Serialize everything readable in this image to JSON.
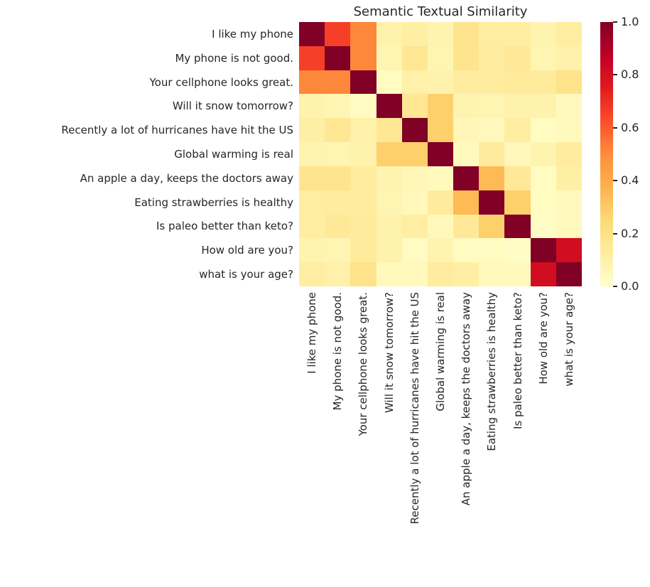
{
  "title": "Semantic Textual Similarity",
  "chart_data": {
    "type": "heatmap",
    "title": "Semantic Textual Similarity",
    "labels": [
      "I like my phone",
      "My phone is not good.",
      "Your cellphone looks great.",
      "Will it snow tomorrow?",
      "Recently a lot of hurricanes have hit the US",
      "Global warming is real",
      "An apple a day, keeps the doctors away",
      "Eating strawberries is healthy",
      "Is paleo better than keto?",
      "How old are you?",
      "what is your age?"
    ],
    "matrix": [
      [
        1.0,
        0.66,
        0.51,
        0.09,
        0.11,
        0.08,
        0.18,
        0.12,
        0.12,
        0.08,
        0.12
      ],
      [
        0.66,
        1.0,
        0.51,
        0.07,
        0.16,
        0.07,
        0.18,
        0.13,
        0.15,
        0.07,
        0.1
      ],
      [
        0.51,
        0.51,
        1.0,
        0.03,
        0.1,
        0.09,
        0.13,
        0.13,
        0.14,
        0.14,
        0.19
      ],
      [
        0.09,
        0.07,
        0.03,
        1.0,
        0.16,
        0.28,
        0.08,
        0.07,
        0.09,
        0.09,
        0.04
      ],
      [
        0.11,
        0.16,
        0.1,
        0.16,
        1.0,
        0.28,
        0.06,
        0.05,
        0.12,
        0.03,
        0.04
      ],
      [
        0.08,
        0.07,
        0.09,
        0.28,
        0.28,
        1.0,
        0.04,
        0.14,
        0.05,
        0.08,
        0.13
      ],
      [
        0.18,
        0.18,
        0.13,
        0.08,
        0.06,
        0.04,
        1.0,
        0.35,
        0.15,
        0.03,
        0.11
      ],
      [
        0.12,
        0.13,
        0.13,
        0.07,
        0.05,
        0.14,
        0.35,
        1.0,
        0.28,
        0.03,
        0.04
      ],
      [
        0.12,
        0.15,
        0.14,
        0.09,
        0.12,
        0.05,
        0.15,
        0.28,
        1.0,
        0.02,
        0.04
      ],
      [
        0.08,
        0.07,
        0.14,
        0.09,
        0.03,
        0.08,
        0.03,
        0.03,
        0.02,
        1.0,
        0.81
      ],
      [
        0.12,
        0.1,
        0.19,
        0.04,
        0.04,
        0.13,
        0.11,
        0.04,
        0.04,
        0.81,
        1.0
      ]
    ],
    "colormap": "YlOrRd",
    "colormap_stops": [
      "#ffffcc",
      "#ffeda0",
      "#fed976",
      "#feb24c",
      "#fd8d3c",
      "#fc4e2a",
      "#e31a1c",
      "#bd0026",
      "#800026"
    ],
    "colorbar": {
      "min": 0.0,
      "max": 1.0,
      "ticks": [
        "0.0",
        "0.2",
        "0.4",
        "0.6",
        "0.8",
        "1.0"
      ],
      "position": "right"
    },
    "text_color": "#262626",
    "background": "#ffffff",
    "grid": false,
    "legend": false
  }
}
